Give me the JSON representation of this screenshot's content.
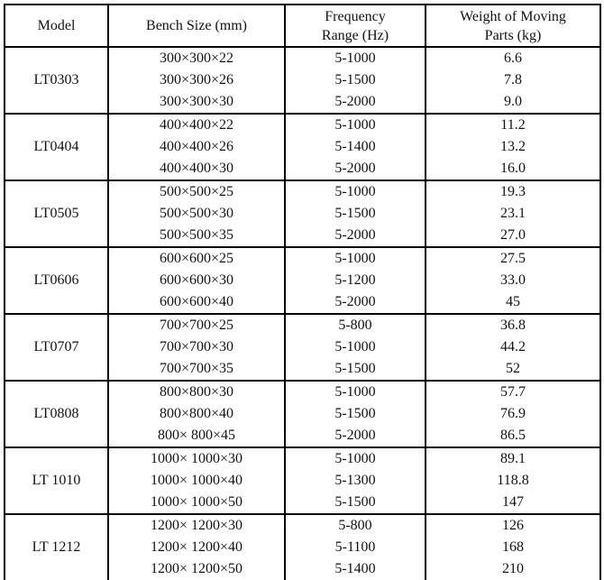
{
  "table": {
    "headers": [
      [
        "Model"
      ],
      [
        "Bench Size (mm)"
      ],
      [
        "Frequency",
        "Range (Hz)"
      ],
      [
        "Weight of Moving",
        "Parts (kg)"
      ]
    ],
    "rows": [
      {
        "model": "LT0303",
        "sizes": [
          "300×300×22",
          "300×300×26",
          "300×300×30"
        ],
        "freqs": [
          "5-1000",
          "5-1500",
          "5-2000"
        ],
        "weights": [
          "6.6",
          "7.8",
          "9.0"
        ]
      },
      {
        "model": "LT0404",
        "sizes": [
          "400×400×22",
          "400×400×26",
          "400×400×30"
        ],
        "freqs": [
          "5-1000",
          "5-1400",
          "5-2000"
        ],
        "weights": [
          "11.2",
          "13.2",
          "16.0"
        ]
      },
      {
        "model": "LT0505",
        "sizes": [
          "500×500×25",
          "500×500×30",
          "500×500×35"
        ],
        "freqs": [
          "5-1000",
          "5-1500",
          "5-2000"
        ],
        "weights": [
          "19.3",
          "23.1",
          "27.0"
        ]
      },
      {
        "model": "LT0606",
        "sizes": [
          "600×600×25",
          "600×600×30",
          "600×600×40"
        ],
        "freqs": [
          "5-1000",
          "5-1200",
          "5-2000"
        ],
        "weights": [
          "27.5",
          "33.0",
          "45"
        ]
      },
      {
        "model": "LT0707",
        "sizes": [
          "700×700×25",
          "700×700×30",
          "700×700×35"
        ],
        "freqs": [
          "5-800",
          "5-1000",
          "5-1500"
        ],
        "weights": [
          "36.8",
          "44.2",
          "52"
        ]
      },
      {
        "model": "LT0808",
        "sizes": [
          "800×800×30",
          "800×800×40",
          "800× 800×45"
        ],
        "freqs": [
          "5-1000",
          "5-1500",
          "5-2000"
        ],
        "weights": [
          "57.7",
          "76.9",
          "86.5"
        ]
      },
      {
        "model": "LT 1010",
        "sizes": [
          "1000× 1000×30",
          "1000× 1000×40",
          "1000× 1000×50"
        ],
        "freqs": [
          "5-1000",
          "5-1300",
          "5-1500"
        ],
        "weights": [
          "89.1",
          "118.8",
          "147"
        ]
      },
      {
        "model": "LT 1212",
        "sizes": [
          "1200× 1200×30",
          "1200× 1200×40",
          "1200× 1200×50"
        ],
        "freqs": [
          "5-800",
          "5-1100",
          "5-1400"
        ],
        "weights": [
          "126",
          "168",
          "210"
        ]
      }
    ]
  }
}
